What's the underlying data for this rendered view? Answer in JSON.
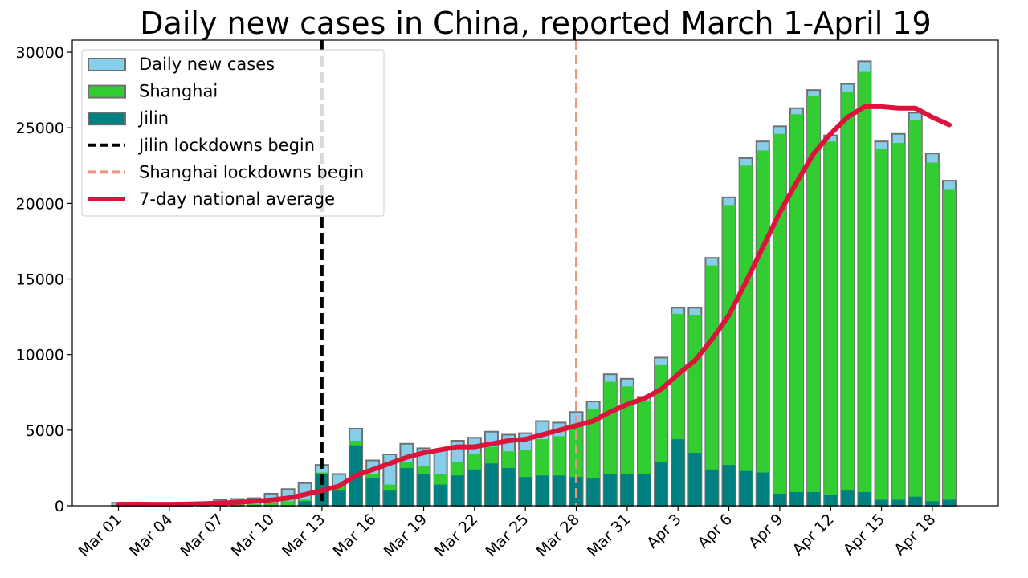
{
  "chart_data": {
    "type": "bar",
    "title": "Daily new cases in China, reported March 1-April 19",
    "xlabel": "",
    "ylabel": "",
    "ylim": [
      0,
      30800
    ],
    "yticks": [
      0,
      5000,
      10000,
      15000,
      20000,
      25000,
      30000
    ],
    "categories": [
      "Mar 01",
      "Mar 02",
      "Mar 03",
      "Mar 04",
      "Mar 05",
      "Mar 06",
      "Mar 07",
      "Mar 08",
      "Mar 09",
      "Mar 10",
      "Mar 11",
      "Mar 12",
      "Mar 13",
      "Mar 14",
      "Mar 15",
      "Mar 16",
      "Mar 17",
      "Mar 18",
      "Mar 19",
      "Mar 20",
      "Mar 21",
      "Mar 22",
      "Mar 23",
      "Mar 24",
      "Mar 25",
      "Mar 26",
      "Mar 27",
      "Mar 28",
      "Mar 29",
      "Mar 30",
      "Mar 31",
      "Apr 1",
      "Apr 2",
      "Apr 3",
      "Apr 4",
      "Apr 5",
      "Apr 6",
      "Apr 7",
      "Apr 8",
      "Apr 9",
      "Apr 10",
      "Apr 11",
      "Apr 12",
      "Apr 13",
      "Apr 14",
      "Apr 15",
      "Apr 16",
      "Apr 17",
      "Apr 18",
      "Apr 19"
    ],
    "xtick_labels": [
      {
        "index": 0,
        "label": "Mar 01"
      },
      {
        "index": 3,
        "label": "Mar 04"
      },
      {
        "index": 6,
        "label": "Mar 07"
      },
      {
        "index": 9,
        "label": "Mar 10"
      },
      {
        "index": 12,
        "label": "Mar 13"
      },
      {
        "index": 15,
        "label": "Mar 16"
      },
      {
        "index": 18,
        "label": "Mar 19"
      },
      {
        "index": 21,
        "label": "Mar 22"
      },
      {
        "index": 24,
        "label": "Mar 25"
      },
      {
        "index": 27,
        "label": "Mar 28"
      },
      {
        "index": 30,
        "label": "Mar 31"
      },
      {
        "index": 33,
        "label": "Apr 3"
      },
      {
        "index": 36,
        "label": "Apr 6"
      },
      {
        "index": 39,
        "label": "Apr 9"
      },
      {
        "index": 42,
        "label": "Apr 12"
      },
      {
        "index": 45,
        "label": "Apr 15"
      },
      {
        "index": 48,
        "label": "Apr 18"
      }
    ],
    "series": [
      {
        "name": "Daily new cases",
        "color": "#87ceeb",
        "values": [
          200,
          150,
          130,
          150,
          180,
          200,
          400,
          450,
          500,
          800,
          1100,
          1500,
          2700,
          2100,
          5100,
          3000,
          3400,
          4100,
          3800,
          3700,
          4300,
          4500,
          4900,
          4700,
          4800,
          5600,
          5500,
          6200,
          6900,
          8700,
          8400,
          7200,
          9800,
          13100,
          13100,
          16400,
          20400,
          23000,
          24100,
          25100,
          26300,
          27500,
          24500,
          27900,
          29400,
          24100,
          24600,
          26000,
          23300,
          21500
        ]
      },
      {
        "name": "Shanghai",
        "color": "#32cd32",
        "values": [
          0,
          0,
          0,
          0,
          0,
          0,
          0,
          0,
          0,
          0,
          0,
          0,
          0,
          0,
          0,
          0,
          0,
          0,
          0,
          0,
          0,
          0,
          0,
          0,
          0,
          0,
          0,
          0,
          0,
          0,
          0,
          0,
          0,
          0,
          0,
          0,
          0,
          0,
          0,
          0,
          0,
          0,
          0,
          0,
          0,
          0,
          0,
          0,
          0,
          0
        ],
        "totals_with_shanghai": [
          50,
          50,
          50,
          50,
          50,
          50,
          100,
          100,
          100,
          200,
          300,
          400,
          2200,
          1300,
          4300,
          2100,
          1400,
          2900,
          2600,
          2100,
          2900,
          3400,
          3900,
          3600,
          3700,
          4400,
          4600,
          5400,
          6400,
          8200,
          7900,
          6900,
          9300,
          12700,
          12600,
          15900,
          19900,
          22500,
          23500,
          24600,
          25900,
          27100,
          24100,
          27400,
          28700,
          23600,
          24000,
          25500,
          22700,
          20900
        ]
      },
      {
        "name": "Jilin",
        "color": "#008080",
        "values": [
          0,
          0,
          0,
          0,
          0,
          0,
          0,
          0,
          0,
          0,
          0,
          300,
          2100,
          1000,
          4000,
          1800,
          1000,
          2500,
          2100,
          1400,
          2000,
          2400,
          2800,
          2500,
          1900,
          2000,
          2000,
          1900,
          1800,
          2100,
          2100,
          2100,
          2900,
          4400,
          3500,
          2400,
          2700,
          2300,
          2200,
          800,
          900,
          900,
          700,
          1000,
          900,
          400,
          400,
          600,
          300,
          400
        ]
      },
      {
        "name": "7-day national average",
        "color": "#dc143c",
        "values": [
          100,
          110,
          100,
          100,
          110,
          140,
          180,
          230,
          290,
          380,
          510,
          750,
          1000,
          1300,
          2000,
          2400,
          2800,
          3200,
          3500,
          3700,
          3900,
          3900,
          4100,
          4300,
          4400,
          4700,
          5000,
          5300,
          5600,
          6200,
          6700,
          7100,
          7700,
          8700,
          9600,
          11000,
          12600,
          14800,
          17100,
          19400,
          21400,
          23300,
          24600,
          25700,
          26400,
          26400,
          26300,
          26300,
          25700,
          25200
        ]
      }
    ],
    "vlines": [
      {
        "name": "Jilin lockdowns begin",
        "at_index": 12,
        "color": "#000000",
        "style": "dashed"
      },
      {
        "name": "Shanghai lockdowns begin",
        "at_index": 27,
        "color": "#e9967a",
        "style": "dashed"
      }
    ],
    "legend_placement": "top-left",
    "grid": false
  }
}
